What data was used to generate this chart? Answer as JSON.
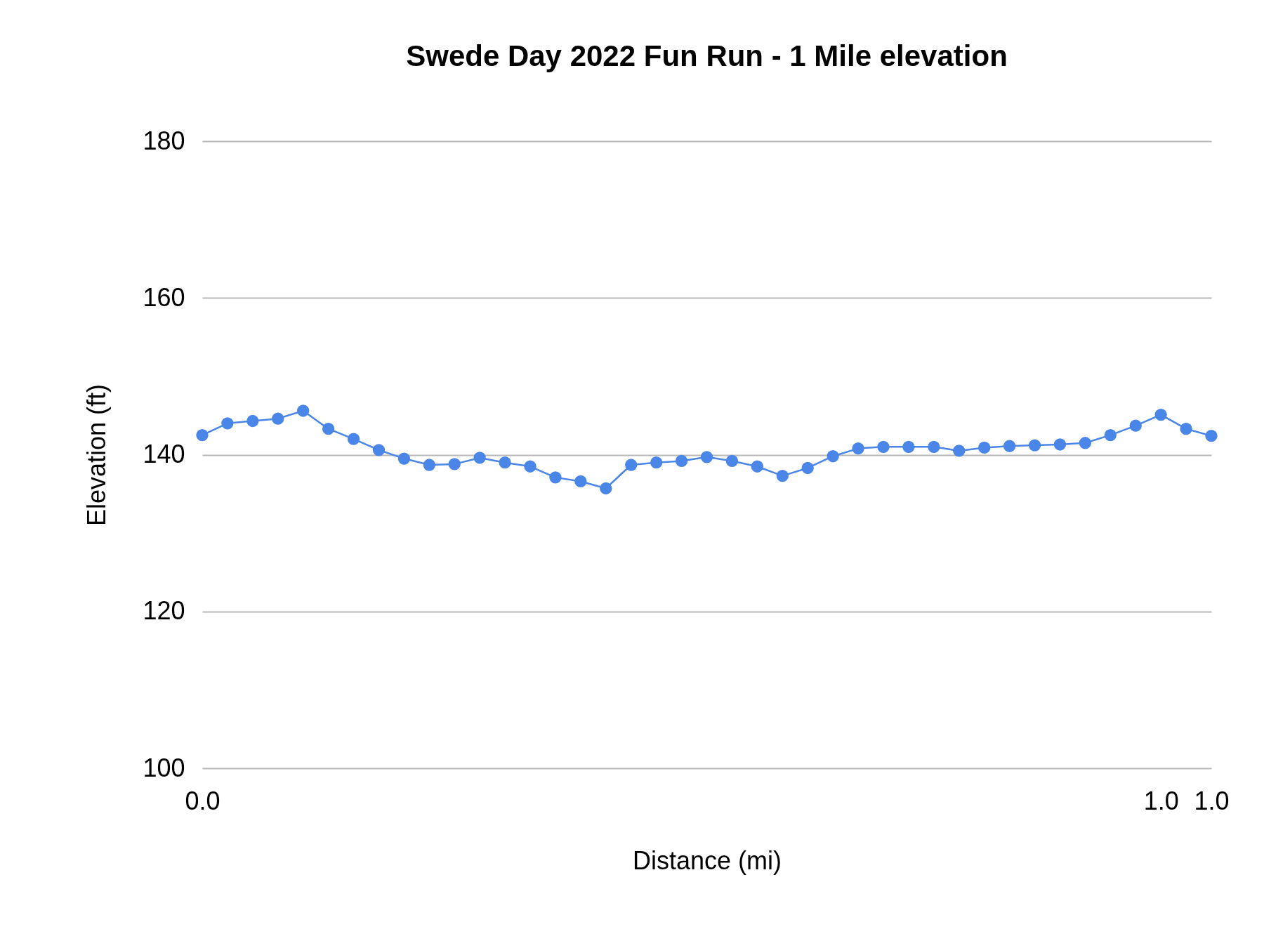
{
  "chart_data": {
    "type": "line",
    "title": "Swede Day 2022 Fun Run - 1 Mile elevation",
    "xlabel": "Distance (mi)",
    "ylabel": "Elevation (ft)",
    "categories": [
      "0.0",
      null,
      null,
      null,
      null,
      null,
      null,
      null,
      null,
      null,
      null,
      null,
      null,
      null,
      null,
      null,
      null,
      null,
      null,
      null,
      null,
      null,
      null,
      null,
      null,
      null,
      null,
      null,
      null,
      null,
      null,
      null,
      null,
      null,
      null,
      null,
      null,
      null,
      "1.0",
      null,
      "1.0"
    ],
    "series": [
      {
        "color": "#4a86e8",
        "values": [
          142.5,
          144.0,
          144.3,
          144.6,
          145.6,
          143.3,
          142.0,
          140.6,
          139.5,
          138.7,
          138.8,
          139.6,
          139.0,
          138.5,
          137.1,
          136.6,
          135.7,
          138.7,
          139.0,
          139.2,
          139.7,
          139.2,
          138.5,
          137.3,
          138.3,
          139.8,
          140.8,
          141.0,
          141.0,
          141.0,
          140.5,
          140.9,
          141.1,
          141.2,
          141.3,
          141.5,
          142.5,
          143.7,
          145.1,
          143.3,
          142.4
        ]
      }
    ],
    "ylim": [
      100,
      180
    ],
    "yticks": [
      100,
      120,
      140,
      160,
      180
    ],
    "grid": "y",
    "marker": "circle",
    "line_style": "solid"
  }
}
